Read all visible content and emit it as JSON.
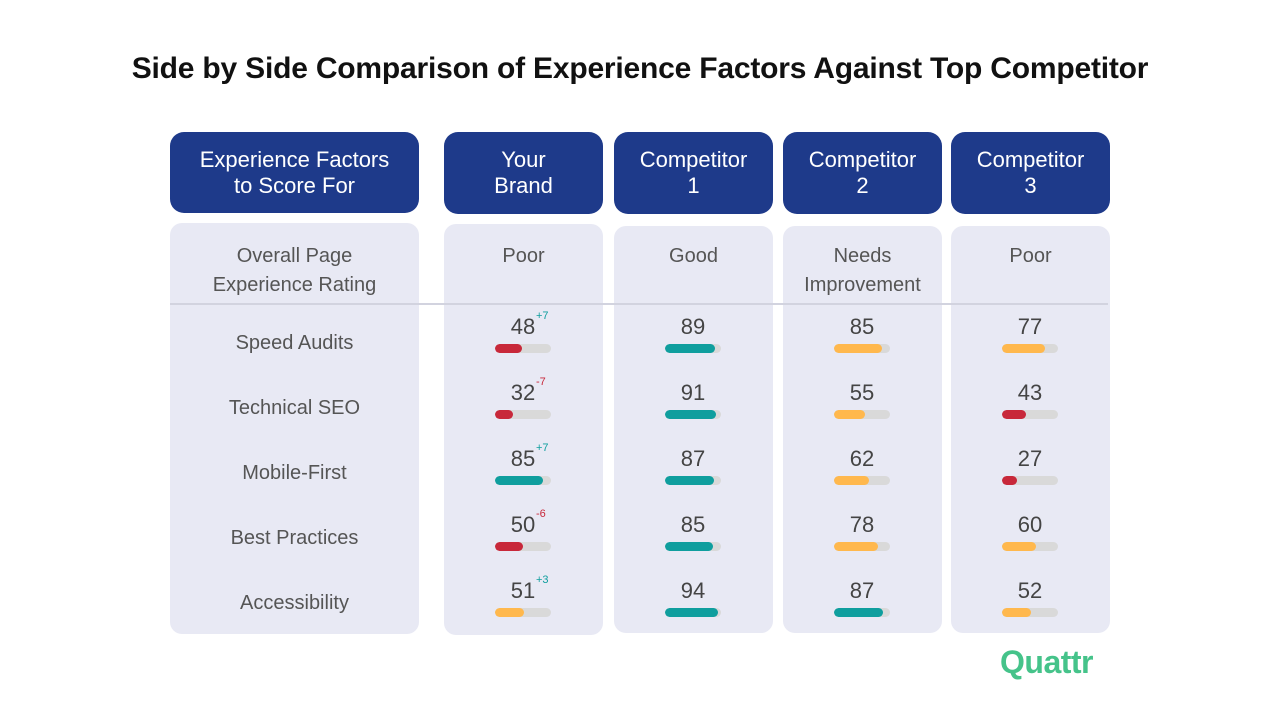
{
  "title": "Side by Side Comparison of Experience Factors Against Top Competitor",
  "colors": {
    "header": "#1e3a8a",
    "good": "#0f9e9e",
    "average": "#ffb84d",
    "poor": "#c8283a",
    "track": "#d9d9d9",
    "delta_up": "#0f9e9e",
    "delta_down": "#c8283a"
  },
  "chart_data": {
    "type": "table",
    "header_factor": "Experience Factors\nto Score For",
    "columns": [
      "Your\nBrand",
      "Competitor\n1",
      "Competitor\n2",
      "Competitor\n3"
    ],
    "rating_label": "Overall Page\nExperience Rating",
    "ratings": [
      "Poor",
      "Good",
      "Needs\nImprovement",
      "Poor"
    ],
    "factors": [
      "Speed Audits",
      "Technical SEO",
      "Mobile-First",
      "Best Practices",
      "Accessibility"
    ],
    "scores": [
      [
        48,
        89,
        85,
        77
      ],
      [
        32,
        91,
        55,
        43
      ],
      [
        85,
        87,
        62,
        27
      ],
      [
        50,
        85,
        78,
        60
      ],
      [
        51,
        94,
        87,
        52
      ]
    ],
    "levels": [
      [
        "poor",
        "good",
        "average",
        "average"
      ],
      [
        "poor",
        "good",
        "average",
        "poor"
      ],
      [
        "good",
        "good",
        "average",
        "poor"
      ],
      [
        "poor",
        "good",
        "average",
        "average"
      ],
      [
        "average",
        "good",
        "good",
        "average"
      ]
    ],
    "your_brand_deltas": [
      "+7",
      "-7",
      "+7",
      "-6",
      "+3"
    ],
    "score_range": [
      0,
      100
    ]
  },
  "logo": {
    "text": "Quattr"
  }
}
